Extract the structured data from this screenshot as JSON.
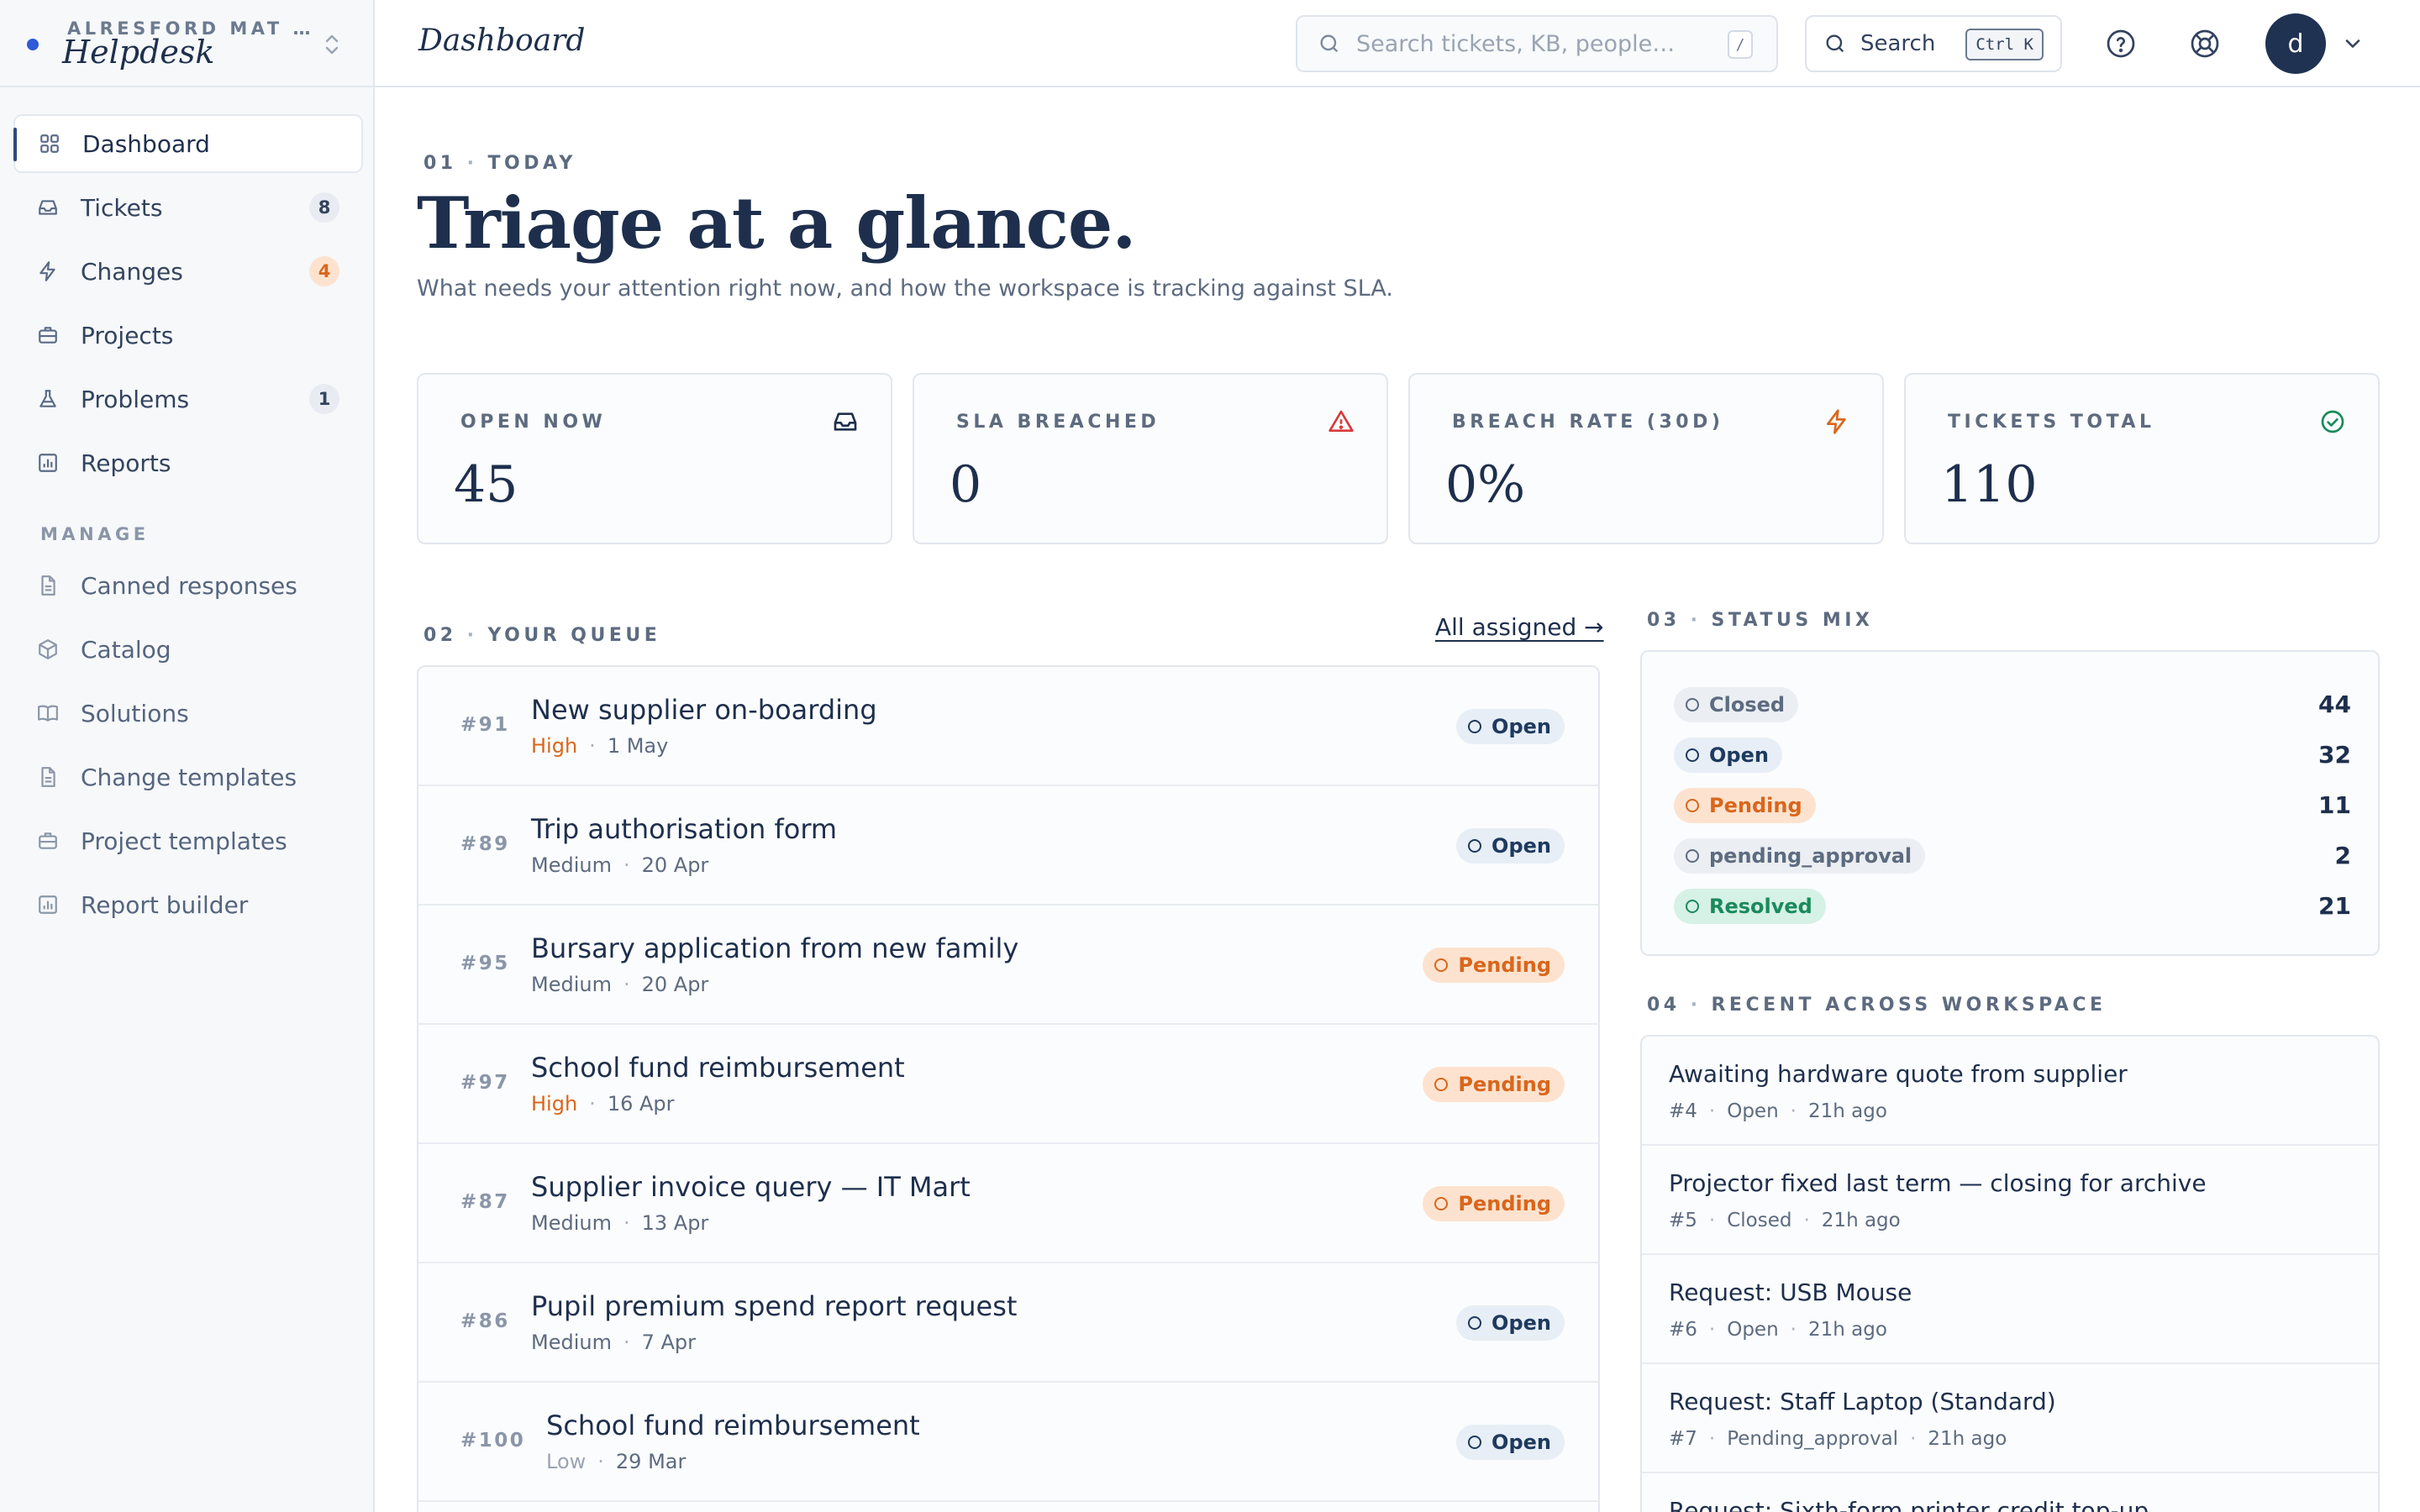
{
  "workspace": {
    "org": "ALRESFORD MAT …",
    "app": "Helpdesk"
  },
  "nav": {
    "items": [
      {
        "label": "Dashboard",
        "icon": "dashboard-grid-icon"
      },
      {
        "label": "Tickets",
        "icon": "inbox-icon",
        "count": "8"
      },
      {
        "label": "Changes",
        "icon": "lightning-icon",
        "count": "4"
      },
      {
        "label": "Projects",
        "icon": "briefcase-icon"
      },
      {
        "label": "Problems",
        "icon": "flask-icon",
        "count": "1"
      },
      {
        "label": "Reports",
        "icon": "bar-chart-icon"
      }
    ],
    "manage_label": "MANAGE",
    "manage": [
      {
        "label": "Canned responses",
        "icon": "document-icon"
      },
      {
        "label": "Catalog",
        "icon": "cube-icon"
      },
      {
        "label": "Solutions",
        "icon": "book-icon"
      },
      {
        "label": "Change templates",
        "icon": "document-icon"
      },
      {
        "label": "Project templates",
        "icon": "briefcase-icon"
      },
      {
        "label": "Report builder",
        "icon": "bar-chart-icon"
      }
    ]
  },
  "topbar": {
    "title": "Dashboard",
    "search_placeholder": "Search tickets, KB, people…",
    "search_shortcut": "/",
    "command_label": "Search",
    "command_shortcut": "Ctrl K",
    "avatar_initial": "d"
  },
  "hero": {
    "eyebrow_num": "01",
    "eyebrow_label": "TODAY",
    "title": "Triage at a glance.",
    "subtitle": "What needs your attention right now, and how the workspace is tracking against SLA."
  },
  "stats": [
    {
      "label": "OPEN NOW",
      "value": "45",
      "icon": "inbox-icon",
      "color": "#1e2f4d"
    },
    {
      "label": "SLA BREACHED",
      "value": "0",
      "icon": "warning-triangle-icon",
      "color": "#d63a3a"
    },
    {
      "label": "BREACH RATE (30D)",
      "value": "0%",
      "icon": "lightning-icon",
      "color": "#d9661c"
    },
    {
      "label": "TICKETS TOTAL",
      "value": "110",
      "icon": "check-circle-icon",
      "color": "#1a8a5c"
    }
  ],
  "queue": {
    "eyebrow_num": "02",
    "eyebrow_label": "YOUR QUEUE",
    "link": "All assigned →",
    "rows": [
      {
        "id": "#91",
        "title": "New supplier on-boarding",
        "priority": "High",
        "date": "1 May",
        "status": "Open"
      },
      {
        "id": "#89",
        "title": "Trip authorisation form",
        "priority": "Medium",
        "date": "20 Apr",
        "status": "Open"
      },
      {
        "id": "#95",
        "title": "Bursary application from new family",
        "priority": "Medium",
        "date": "20 Apr",
        "status": "Pending"
      },
      {
        "id": "#97",
        "title": "School fund reimbursement",
        "priority": "High",
        "date": "16 Apr",
        "status": "Pending"
      },
      {
        "id": "#87",
        "title": "Supplier invoice query — IT Mart",
        "priority": "Medium",
        "date": "13 Apr",
        "status": "Pending"
      },
      {
        "id": "#86",
        "title": "Pupil premium spend report request",
        "priority": "Medium",
        "date": "7 Apr",
        "status": "Open"
      },
      {
        "id": "#100",
        "title": "School fund reimbursement",
        "priority": "Low",
        "date": "29 Mar",
        "status": "Open"
      }
    ]
  },
  "status_mix": {
    "eyebrow_num": "03",
    "eyebrow_label": "STATUS MIX",
    "rows": [
      {
        "status": "Closed",
        "count": "44",
        "kind": "closed"
      },
      {
        "status": "Open",
        "count": "32",
        "kind": "open"
      },
      {
        "status": "Pending",
        "count": "11",
        "kind": "pending"
      },
      {
        "status": "pending_approval",
        "count": "2",
        "kind": "approval"
      },
      {
        "status": "Resolved",
        "count": "21",
        "kind": "resolved"
      }
    ]
  },
  "recent": {
    "eyebrow_num": "04",
    "eyebrow_label": "RECENT ACROSS WORKSPACE",
    "rows": [
      {
        "title": "Awaiting hardware quote from supplier",
        "id": "#4",
        "status": "Open",
        "time": "21h ago"
      },
      {
        "title": "Projector fixed last term — closing for archive",
        "id": "#5",
        "status": "Closed",
        "time": "21h ago"
      },
      {
        "title": "Request: USB Mouse",
        "id": "#6",
        "status": "Open",
        "time": "21h ago"
      },
      {
        "title": "Request: Staff Laptop (Standard)",
        "id": "#7",
        "status": "Pending_approval",
        "time": "21h ago"
      },
      {
        "title": "Request: Sixth-form printer credit top-up",
        "id": "",
        "status": "",
        "time": ""
      }
    ]
  }
}
